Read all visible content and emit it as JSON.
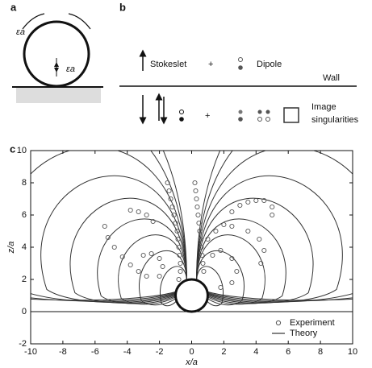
{
  "panels": {
    "a": {
      "label": "a",
      "epsilon_top": "εa",
      "epsilon_center": "εa"
    },
    "b": {
      "label": "b",
      "stokeslet": "Stokeslet",
      "plus_top": "+",
      "dipole": "Dipole",
      "wall": "Wall",
      "plus_bottom": "+",
      "image_lines": [
        "Image",
        "singularities"
      ]
    },
    "c": {
      "label": "c"
    }
  },
  "chart_data": {
    "type": "scatter",
    "xlabel": "x/a",
    "ylabel": "z/a",
    "xlim": [
      -10,
      10
    ],
    "ylim": [
      -2,
      10
    ],
    "xticks": [
      -10,
      -8,
      -6,
      -4,
      -2,
      0,
      2,
      4,
      6,
      8,
      10
    ],
    "yticks": [
      -2,
      0,
      2,
      4,
      6,
      8,
      10
    ],
    "legend": "lower right",
    "series": [
      {
        "name": "Experiment",
        "color": "#555555",
        "x": [
          -1.5,
          -1.4,
          -1.3,
          -1.2,
          -1.1,
          -1.0,
          -0.9,
          -0.85,
          -0.8,
          -0.75,
          -0.7,
          -0.7,
          -0.8,
          -3.8,
          -3.3,
          -2.8,
          -2.4,
          -5.4,
          -5.2,
          -4.8,
          -4.3,
          -3.8,
          -3.3,
          -2.8,
          -3.0,
          -2.5,
          -2.0,
          -1.8,
          -2.0,
          0.2,
          0.25,
          0.3,
          0.35,
          0.4,
          0.45,
          0.5,
          0.55,
          0.6,
          0.65,
          0.7,
          0.75,
          2.5,
          3.0,
          3.5,
          4.0,
          4.5,
          5.0,
          5.0,
          1.0,
          1.5,
          2.0,
          2.5,
          3.5,
          4.2,
          4.5,
          4.3,
          1.3,
          1.8,
          2.5,
          2.8,
          2.5,
          1.8
        ],
        "values": [
          8,
          7.5,
          7,
          6.5,
          6,
          5.5,
          5,
          4.5,
          4,
          3.5,
          3,
          2.5,
          2,
          6.3,
          6.2,
          6.0,
          5.6,
          5.3,
          4.6,
          4.0,
          3.4,
          2.9,
          2.5,
          2.2,
          3.5,
          3.6,
          3.3,
          2.8,
          2.2,
          8,
          7.5,
          7,
          6.5,
          6,
          5.5,
          5,
          4.5,
          4,
          3.5,
          3,
          2.5,
          6.2,
          6.6,
          6.8,
          6.9,
          6.9,
          6.5,
          6.0,
          4.5,
          5.0,
          5.4,
          5.3,
          5.0,
          4.5,
          3.8,
          3.0,
          3.5,
          3.8,
          3.3,
          2.5,
          1.8,
          1.5
        ]
      },
      {
        "name": "Theory",
        "color": "#333333"
      }
    ]
  }
}
